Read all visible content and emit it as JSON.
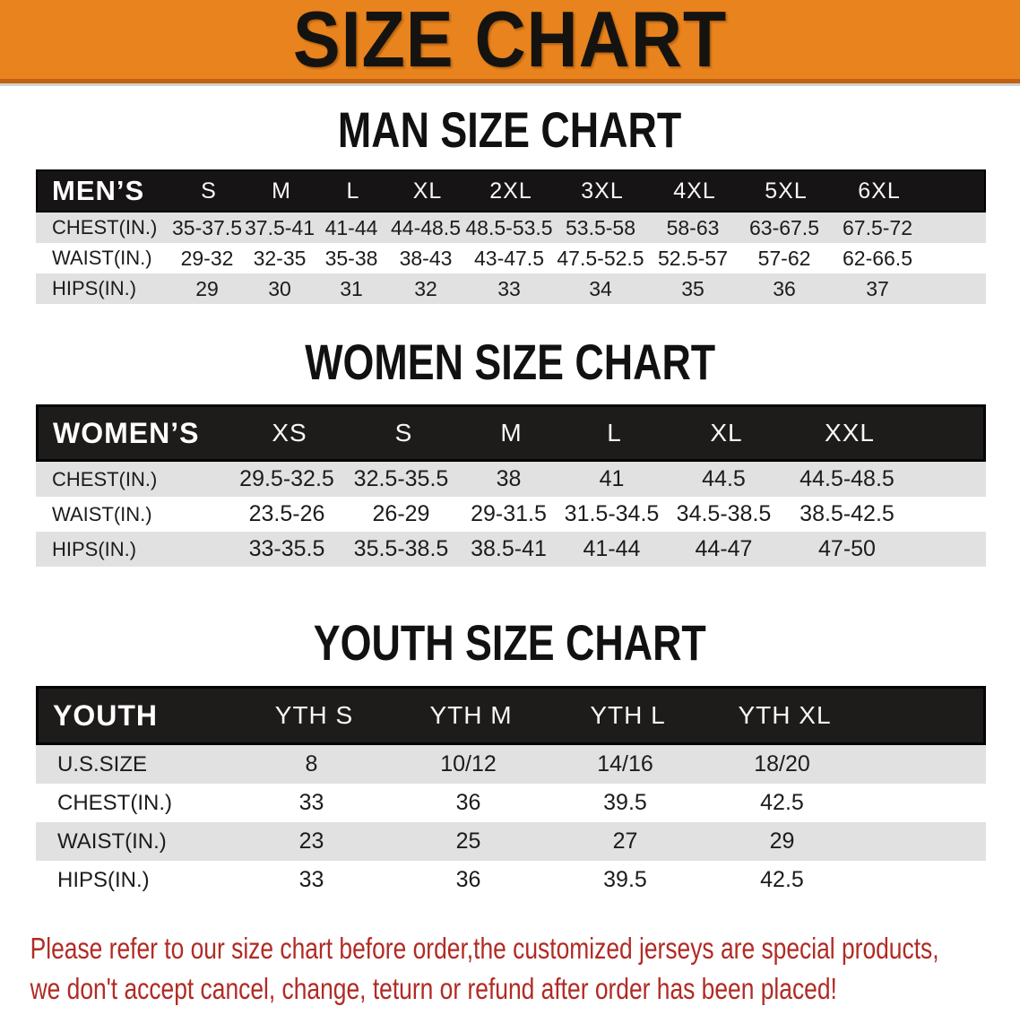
{
  "banner": {
    "title": "SIZE CHART"
  },
  "colors": {
    "banner_orange": "#e8831d",
    "banner_bottom_edge": "#bf6212",
    "header_black": "#1e1b1b",
    "row_gray": "#e1e1e1",
    "row_white": "#ffffff",
    "note_red": "#b12b25",
    "title_black": "#111111"
  },
  "sections": {
    "men": {
      "title": "MAN SIZE CHART",
      "header_label": "MEN’S",
      "sizes": [
        "S",
        "M",
        "L",
        "XL",
        "2XL",
        "3XL",
        "4XL",
        "5XL",
        "6XL"
      ],
      "rows": [
        {
          "label": "CHEST(IN.)",
          "values": [
            "35-37.5",
            "37.5-41",
            "41-44",
            "44-48.5",
            "48.5-53.5",
            "53.5-58",
            "58-63",
            "63-67.5",
            "67.5-72"
          ]
        },
        {
          "label": "WAIST(IN.)",
          "values": [
            "29-32",
            "32-35",
            "35-38",
            "38-43",
            "43-47.5",
            "47.5-52.5",
            "52.5-57",
            "57-62",
            "62-66.5"
          ]
        },
        {
          "label": "HIPS(IN.)",
          "values": [
            "29",
            "30",
            "31",
            "32",
            "33",
            "34",
            "35",
            "36",
            "37"
          ]
        }
      ]
    },
    "women": {
      "title": "WOMEN SIZE CHART",
      "header_label": "WOMEN’S",
      "sizes": [
        "XS",
        "S",
        "M",
        "L",
        "XL",
        "XXL"
      ],
      "rows": [
        {
          "label": "CHEST(IN.)",
          "values": [
            "29.5-32.5",
            "32.5-35.5",
            "38",
            "41",
            "44.5",
            "44.5-48.5"
          ]
        },
        {
          "label": "WAIST(IN.)",
          "values": [
            "23.5-26",
            "26-29",
            "29-31.5",
            "31.5-34.5",
            "34.5-38.5",
            "38.5-42.5"
          ]
        },
        {
          "label": "HIPS(IN.)",
          "values": [
            "33-35.5",
            "35.5-38.5",
            "38.5-41",
            "41-44",
            "44-47",
            "47-50"
          ]
        }
      ]
    },
    "youth": {
      "title": "YOUTH SIZE CHART",
      "header_label": "YOUTH",
      "sizes": [
        "YTH S",
        "YTH M",
        "YTH L",
        "YTH XL"
      ],
      "rows": [
        {
          "label": "U.S.SIZE",
          "values": [
            "8",
            "10/12",
            "14/16",
            "18/20"
          ]
        },
        {
          "label": "CHEST(IN.)",
          "values": [
            "33",
            "36",
            "39.5",
            "42.5"
          ]
        },
        {
          "label": "WAIST(IN.)",
          "values": [
            "23",
            "25",
            "27",
            "29"
          ]
        },
        {
          "label": "HIPS(IN.)",
          "values": [
            "33",
            "36",
            "39.5",
            "42.5"
          ]
        }
      ]
    }
  },
  "footer": {
    "line1": "Please refer to our size chart before order,the customized jerseys are special products,",
    "line2": "we don't accept cancel, change, teturn or refund after order has been placed!"
  }
}
